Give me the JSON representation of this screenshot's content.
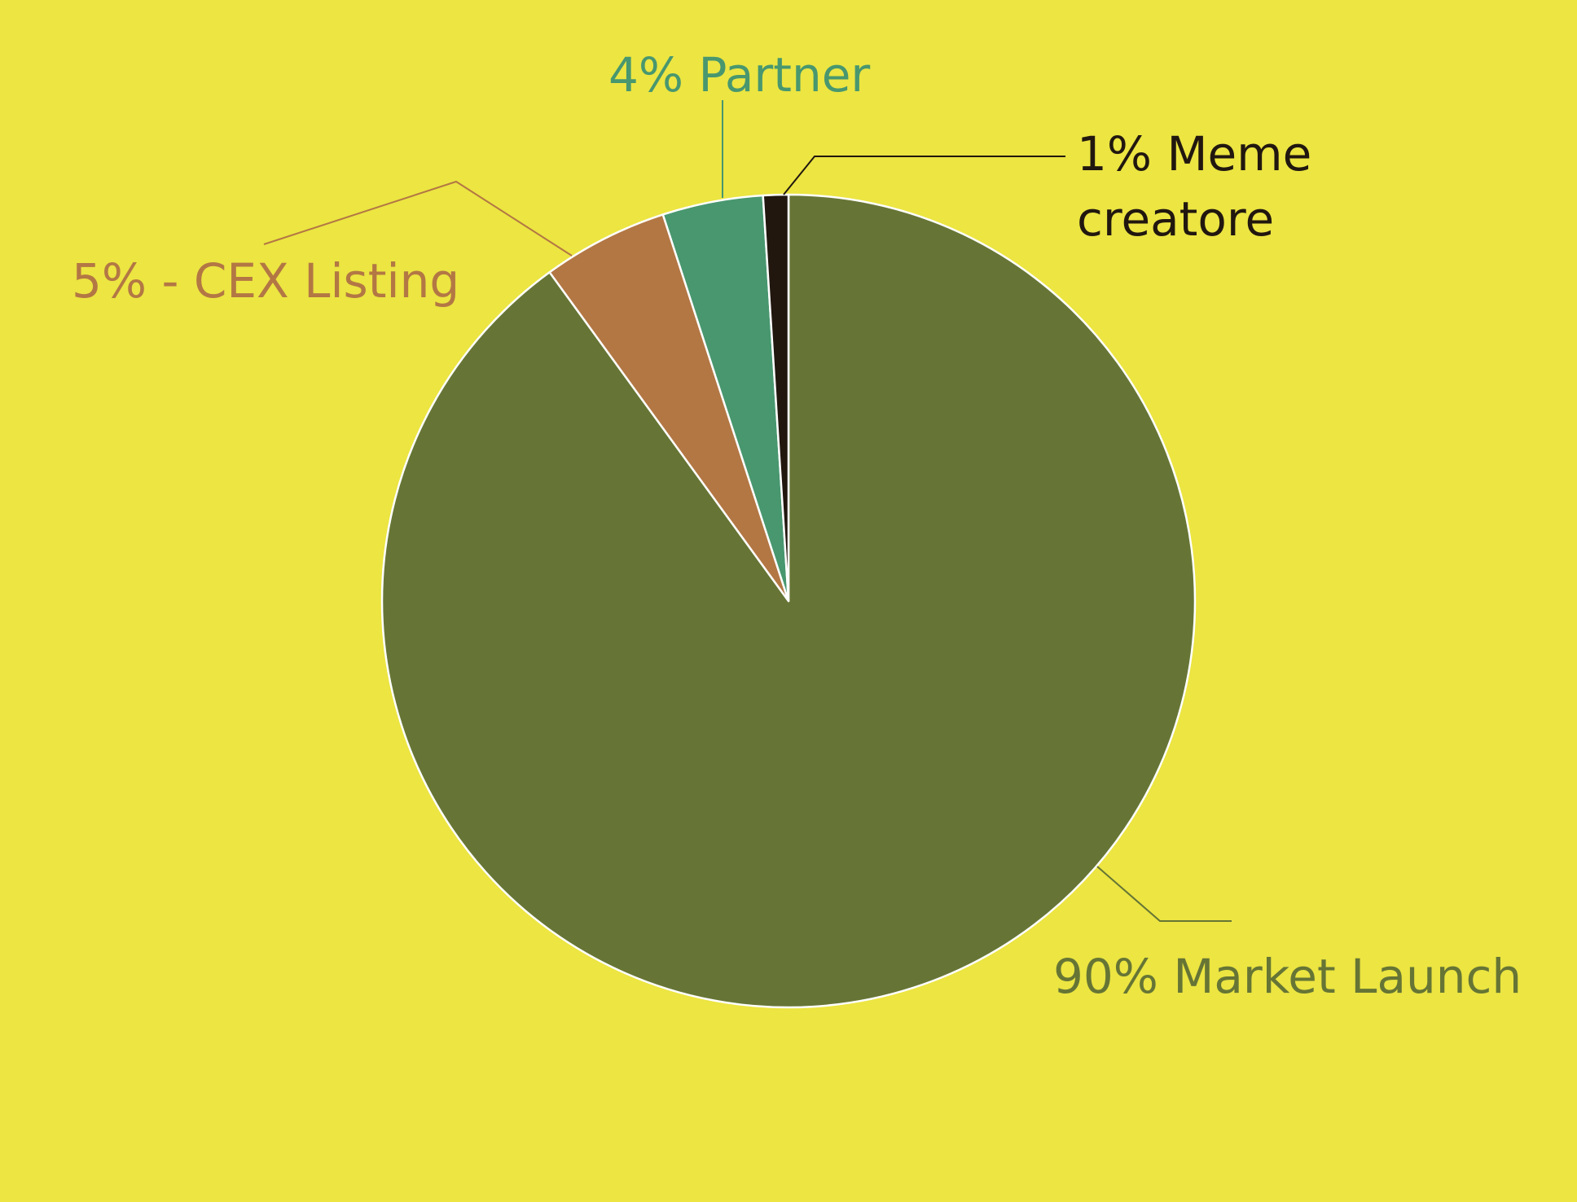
{
  "chart_data": {
    "type": "pie",
    "start": "top",
    "direction": "clockwise",
    "background": "#ece542",
    "slices": [
      {
        "key": "market",
        "label": "90% Market Launch",
        "value": 90,
        "color": "#667535"
      },
      {
        "key": "cex",
        "label": "5% - CEX Listing",
        "value": 5,
        "color": "#b37744"
      },
      {
        "key": "partner",
        "label": "4% Partner",
        "value": 4,
        "color": "#48976f"
      },
      {
        "key": "meme",
        "label_lines": [
          "1% Meme",
          "creatore"
        ],
        "value": 1,
        "color": "#21170f"
      }
    ]
  }
}
